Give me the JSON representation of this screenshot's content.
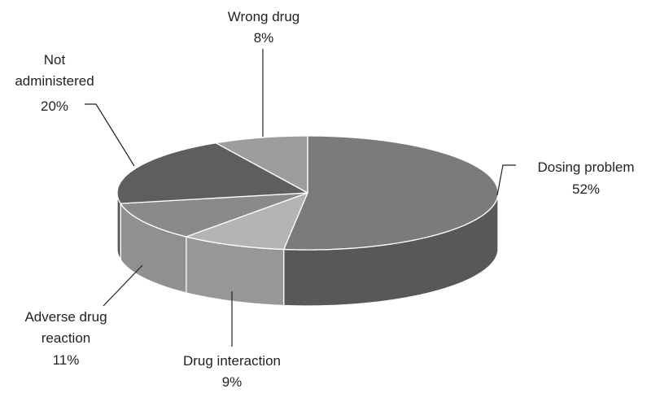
{
  "chart_data": {
    "type": "pie",
    "style": "3d",
    "title": "",
    "slices": [
      {
        "name": "Dosing problem",
        "value": 52,
        "value_label": "52%",
        "label_lines": [
          "Dosing problem"
        ],
        "top_color": "#7b7b7d",
        "side_color": "#58585a"
      },
      {
        "name": "Drug interaction",
        "value": 9,
        "value_label": "9%",
        "label_lines": [
          "Drug interaction"
        ],
        "top_color": "#b4b4b6",
        "side_color": "#97979a"
      },
      {
        "name": "Adverse drug reaction",
        "value": 11,
        "value_label": "11%",
        "label_lines": [
          "Adverse drug",
          "reaction"
        ],
        "top_color": "#8a8a8c",
        "side_color": "#909092"
      },
      {
        "name": "Not administered",
        "value": 20,
        "value_label": "20%",
        "label_lines": [
          "Not",
          "administered"
        ],
        "top_color": "#5e5e60",
        "side_color": "#555557"
      },
      {
        "name": "Wrong drug",
        "value": 8,
        "value_label": "8%",
        "label_lines": [
          "Wrong drug"
        ],
        "top_color": "#9d9d9f",
        "side_color": "#7d7d7f"
      }
    ]
  }
}
